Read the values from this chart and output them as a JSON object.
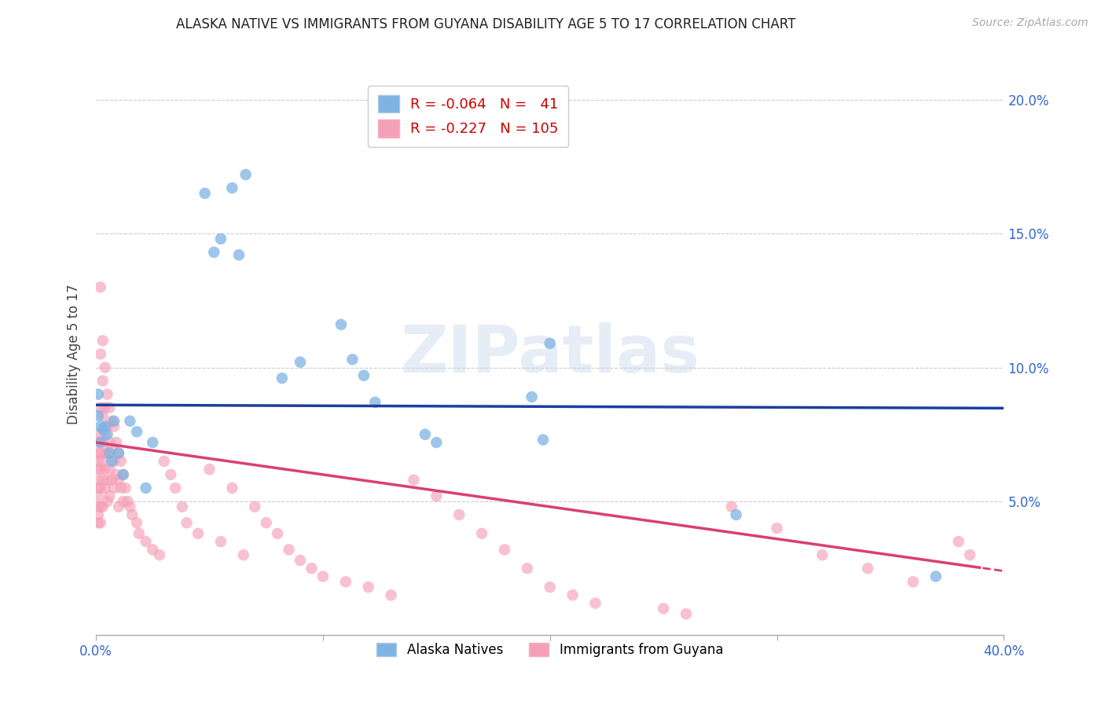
{
  "title": "ALASKA NATIVE VS IMMIGRANTS FROM GUYANA DISABILITY AGE 5 TO 17 CORRELATION CHART",
  "source": "Source: ZipAtlas.com",
  "ylabel": "Disability Age 5 to 17",
  "xlim": [
    0.0,
    0.4
  ],
  "ylim": [
    0.0,
    0.21
  ],
  "xticks": [
    0.0,
    0.1,
    0.2,
    0.3,
    0.4
  ],
  "xticklabels_bottom": [
    "0.0%",
    "",
    "",
    "",
    "40.0%"
  ],
  "yticks": [
    0.0,
    0.05,
    0.1,
    0.15,
    0.2
  ],
  "yticklabels_left": [
    "",
    "",
    "",
    "",
    ""
  ],
  "yticklabels_right": [
    "",
    "5.0%",
    "10.0%",
    "15.0%",
    "20.0%"
  ],
  "legend_blue_r": "-0.064",
  "legend_blue_n": "41",
  "legend_pink_r": "-0.227",
  "legend_pink_n": "105",
  "blue_color": "#7eb3e3",
  "pink_color": "#f5a0b8",
  "trend_blue_color": "#1a3f9f",
  "trend_pink_color": "#d94070",
  "watermark": "ZIPatlas",
  "blue_intercept": 0.086,
  "blue_slope": -0.003,
  "pink_intercept": 0.072,
  "pink_slope": -0.12,
  "alaska_x": [
    0.001,
    0.001,
    0.002,
    0.002,
    0.003,
    0.004,
    0.005,
    0.006,
    0.007,
    0.008,
    0.01,
    0.012,
    0.015,
    0.018,
    0.022,
    0.025,
    0.048,
    0.052,
    0.055,
    0.06,
    0.063,
    0.066,
    0.082,
    0.09,
    0.108,
    0.113,
    0.118,
    0.123,
    0.145,
    0.15,
    0.192,
    0.197,
    0.2,
    0.282,
    0.37
  ],
  "alaska_y": [
    0.09,
    0.082,
    0.078,
    0.072,
    0.077,
    0.078,
    0.075,
    0.068,
    0.065,
    0.08,
    0.068,
    0.06,
    0.08,
    0.076,
    0.055,
    0.072,
    0.165,
    0.143,
    0.148,
    0.167,
    0.142,
    0.172,
    0.096,
    0.102,
    0.116,
    0.103,
    0.097,
    0.087,
    0.075,
    0.072,
    0.089,
    0.073,
    0.109,
    0.045,
    0.022
  ],
  "guyana_x": [
    0.001,
    0.001,
    0.001,
    0.001,
    0.001,
    0.001,
    0.001,
    0.001,
    0.001,
    0.001,
    0.002,
    0.002,
    0.002,
    0.002,
    0.002,
    0.002,
    0.002,
    0.002,
    0.002,
    0.003,
    0.003,
    0.003,
    0.003,
    0.003,
    0.003,
    0.003,
    0.004,
    0.004,
    0.004,
    0.004,
    0.004,
    0.004,
    0.005,
    0.005,
    0.005,
    0.005,
    0.005,
    0.006,
    0.006,
    0.006,
    0.006,
    0.007,
    0.007,
    0.007,
    0.008,
    0.008,
    0.008,
    0.009,
    0.009,
    0.01,
    0.01,
    0.01,
    0.011,
    0.011,
    0.012,
    0.012,
    0.013,
    0.014,
    0.015,
    0.016,
    0.018,
    0.019,
    0.022,
    0.025,
    0.028,
    0.03,
    0.033,
    0.035,
    0.038,
    0.04,
    0.045,
    0.05,
    0.055,
    0.06,
    0.065,
    0.07,
    0.075,
    0.08,
    0.085,
    0.09,
    0.095,
    0.1,
    0.11,
    0.12,
    0.13,
    0.14,
    0.15,
    0.16,
    0.17,
    0.18,
    0.19,
    0.2,
    0.21,
    0.22,
    0.25,
    0.26,
    0.28,
    0.3,
    0.32,
    0.34,
    0.36,
    0.38,
    0.385
  ],
  "guyana_y": [
    0.072,
    0.068,
    0.065,
    0.062,
    0.058,
    0.055,
    0.052,
    0.048,
    0.045,
    0.042,
    0.13,
    0.105,
    0.085,
    0.075,
    0.068,
    0.062,
    0.055,
    0.048,
    0.042,
    0.11,
    0.095,
    0.082,
    0.072,
    0.065,
    0.058,
    0.048,
    0.1,
    0.085,
    0.075,
    0.068,
    0.062,
    0.055,
    0.09,
    0.078,
    0.068,
    0.058,
    0.05,
    0.085,
    0.072,
    0.062,
    0.052,
    0.08,
    0.07,
    0.058,
    0.078,
    0.065,
    0.055,
    0.072,
    0.06,
    0.068,
    0.058,
    0.048,
    0.065,
    0.055,
    0.06,
    0.05,
    0.055,
    0.05,
    0.048,
    0.045,
    0.042,
    0.038,
    0.035,
    0.032,
    0.03,
    0.065,
    0.06,
    0.055,
    0.048,
    0.042,
    0.038,
    0.062,
    0.035,
    0.055,
    0.03,
    0.048,
    0.042,
    0.038,
    0.032,
    0.028,
    0.025,
    0.022,
    0.02,
    0.018,
    0.015,
    0.058,
    0.052,
    0.045,
    0.038,
    0.032,
    0.025,
    0.018,
    0.015,
    0.012,
    0.01,
    0.008,
    0.048,
    0.04,
    0.03,
    0.025,
    0.02,
    0.035,
    0.03
  ]
}
